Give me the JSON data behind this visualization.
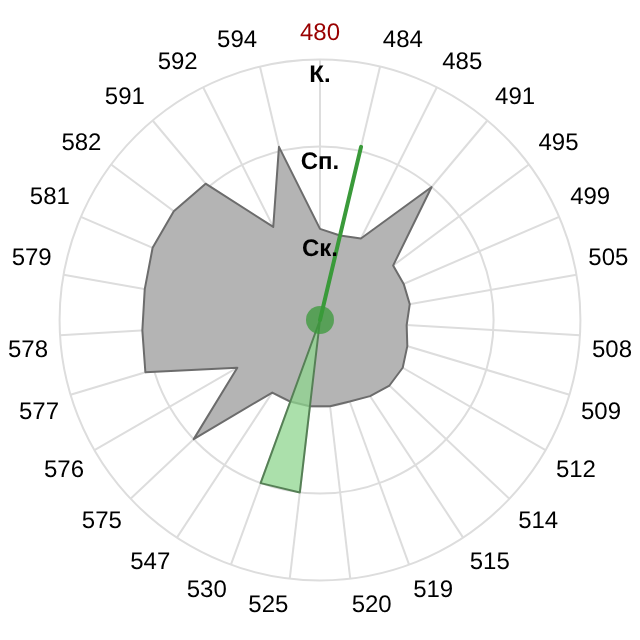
{
  "chart_data": {
    "type": "radar",
    "categories": [
      "480",
      "484",
      "485",
      "491",
      "495",
      "499",
      "505",
      "508",
      "509",
      "512",
      "514",
      "515",
      "519",
      "520",
      "525",
      "530",
      "547",
      "575",
      "576",
      "577",
      "578",
      "579",
      "581",
      "582",
      "591",
      "592",
      "594"
    ],
    "ylim": [
      0,
      3
    ],
    "yticks": [
      {
        "value": 1,
        "label": "Ск."
      },
      {
        "value": 2,
        "label": "Сп."
      },
      {
        "value": 3,
        "label": "К."
      }
    ],
    "grid": true,
    "series": [
      {
        "color": "#b4b4b4",
        "values": [
          1.05,
          1.0,
          1.05,
          2.0,
          1.05,
          1.05,
          1.05,
          1.0,
          1.05,
          1.1,
          1.1,
          1.05,
          1.0,
          1.0,
          1.0,
          1.0,
          1.0,
          2.0,
          1.1,
          2.1,
          2.05,
          2.05,
          2.1,
          2.1,
          2.05,
          1.2,
          2.05
        ]
      },
      {
        "color": "#8fd68f",
        "values": [
          0,
          0,
          0,
          0,
          0,
          0,
          0,
          0,
          0,
          0,
          0,
          0,
          0,
          0,
          2.0,
          2.0,
          0,
          0,
          0,
          0,
          0,
          0,
          0,
          0,
          0,
          0,
          0
        ]
      },
      {
        "color": "#3a9a3a",
        "values": [
          0,
          2.05,
          0,
          0,
          0,
          0,
          0,
          0,
          0,
          0,
          0,
          0,
          0,
          0,
          0,
          0,
          0,
          0,
          0,
          0,
          0,
          0,
          0,
          0,
          0,
          0,
          0
        ]
      }
    ]
  }
}
